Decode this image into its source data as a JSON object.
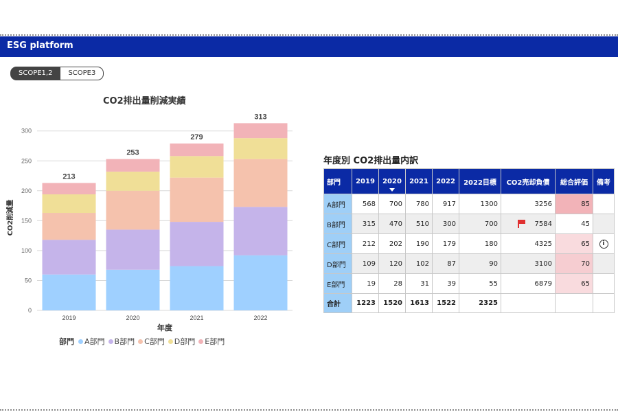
{
  "header": {
    "title": "ESG  platform"
  },
  "tabs": [
    {
      "label": "SCOPE1,2",
      "active": true
    },
    {
      "label": "SCOPE3",
      "active": false
    }
  ],
  "chart_title": "CO2排出量削減実績",
  "legend": {
    "title": "部門",
    "items": [
      "A部門",
      "B部門",
      "C部門",
      "D部門",
      "E部門"
    ]
  },
  "chart_data": {
    "type": "bar",
    "stacked": true,
    "title": "CO2排出量削減実績",
    "xlabel": "年度",
    "ylabel": "CO2削減量",
    "categories": [
      "2019",
      "2020",
      "2021",
      "2022"
    ],
    "ylim": [
      0,
      310
    ],
    "yticks": [
      0,
      50,
      100,
      150,
      200,
      250,
      300
    ],
    "series": [
      {
        "name": "A部門",
        "color": "#9fd0ff",
        "values": [
          60,
          68,
          74,
          92
        ]
      },
      {
        "name": "B部門",
        "color": "#c5b4ea",
        "values": [
          58,
          67,
          74,
          81
        ]
      },
      {
        "name": "C部門",
        "color": "#f5c2ad",
        "values": [
          45,
          65,
          74,
          80
        ]
      },
      {
        "name": "D部門",
        "color": "#f0df97",
        "values": [
          31,
          32,
          36,
          35
        ]
      },
      {
        "name": "E部門",
        "color": "#f2b3b8",
        "values": [
          19,
          21,
          21,
          25
        ]
      }
    ],
    "totals": [
      213,
      253,
      279,
      313
    ],
    "grid": true,
    "legend_position": "bottom"
  },
  "table": {
    "title": "年度別 CO2排出量内訳",
    "headers": [
      "部門",
      "2019",
      "2020",
      "2021",
      "2022",
      "2022目標",
      "CO2売却負債",
      "総合評価",
      "備考"
    ],
    "rows": [
      {
        "dept": "A部門",
        "y2019": "568",
        "y2020": "700",
        "y2021": "780",
        "y2022": "917",
        "target": "1300",
        "debt": "3256",
        "score": "85",
        "score_color": "#f2b3b8",
        "flag": false,
        "note": false
      },
      {
        "dept": "B部門",
        "y2019": "315",
        "y2020": "470",
        "y2021": "510",
        "y2022": "300",
        "target": "700",
        "debt": "7584",
        "score": "45",
        "score_color": "#ffffff",
        "flag": true,
        "note": false
      },
      {
        "dept": "C部門",
        "y2019": "212",
        "y2020": "202",
        "y2021": "190",
        "y2022": "179",
        "target": "180",
        "debt": "4325",
        "score": "65",
        "score_color": "#f9dbde",
        "flag": false,
        "note": true
      },
      {
        "dept": "D部門",
        "y2019": "109",
        "y2020": "120",
        "y2021": "102",
        "y2022": "87",
        "target": "90",
        "debt": "3100",
        "score": "70",
        "score_color": "#f6cdd1",
        "flag": false,
        "note": false
      },
      {
        "dept": "E部門",
        "y2019": "19",
        "y2020": "28",
        "y2021": "31",
        "y2022": "39",
        "target": "55",
        "debt": "6879",
        "score": "65",
        "score_color": "#f9dbde",
        "flag": false,
        "note": false
      }
    ],
    "total": {
      "label": "合計",
      "y2019": "1223",
      "y2020": "1520",
      "y2021": "1613",
      "y2022": "1522",
      "target": "2325"
    },
    "note_icon": "info-icon",
    "flag_icon": "flag-icon"
  }
}
